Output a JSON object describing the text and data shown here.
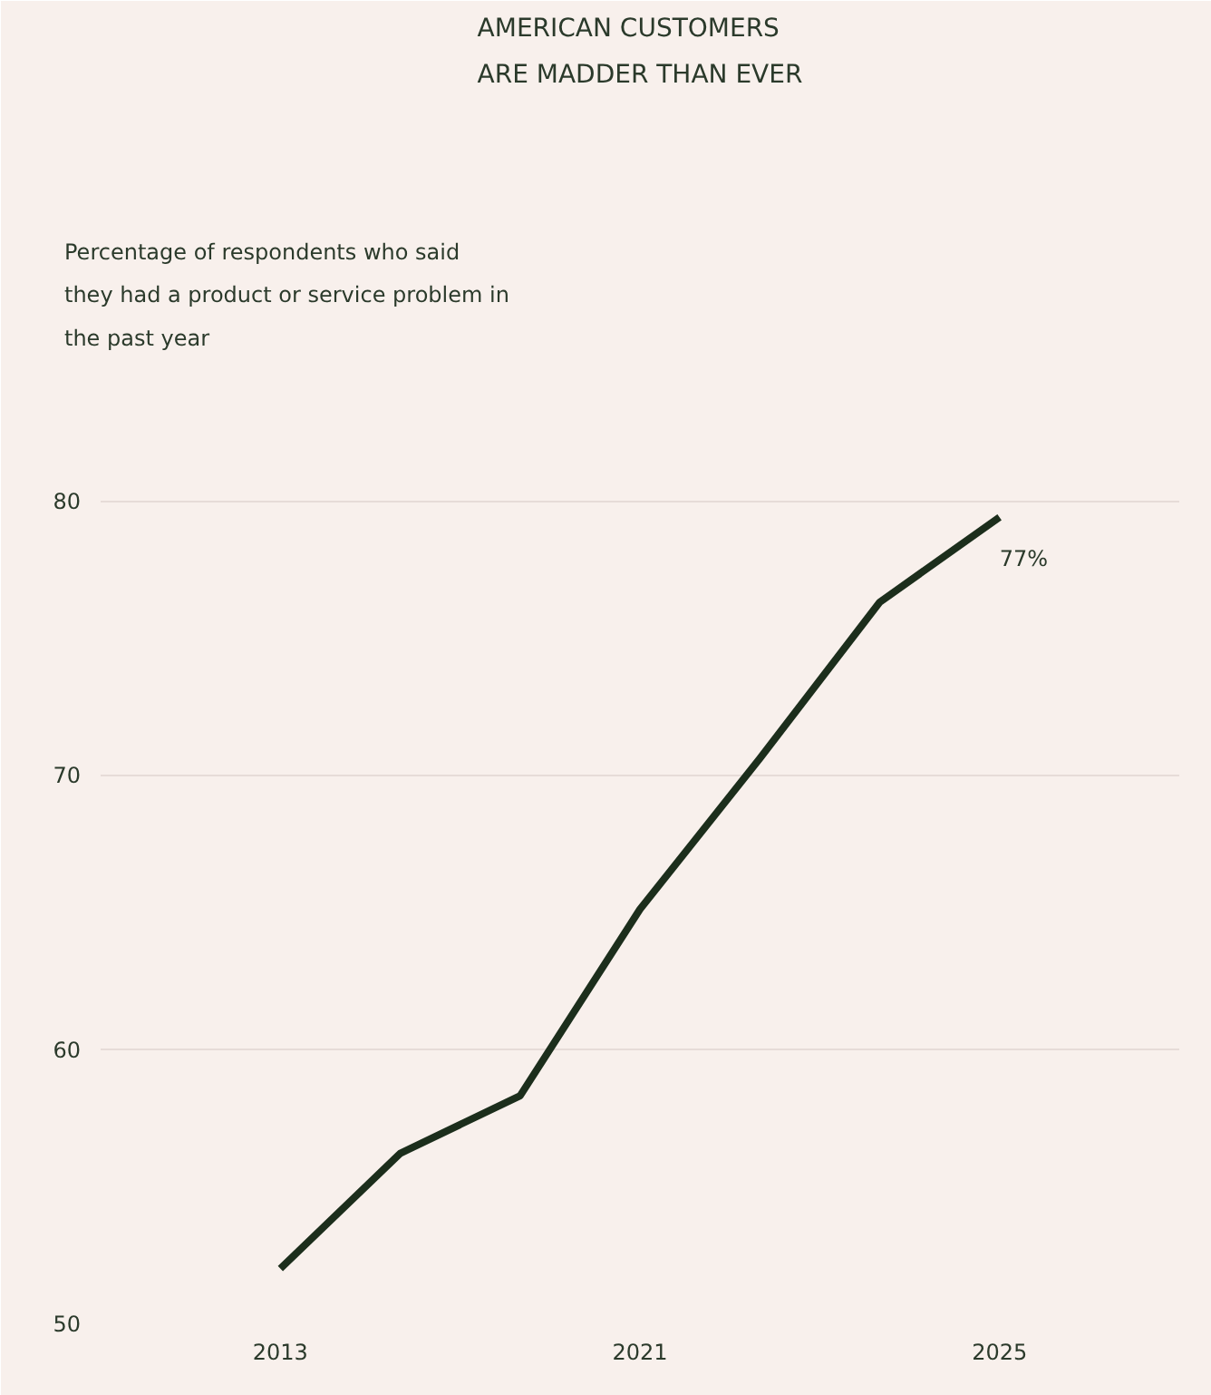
{
  "chart_data": {
    "type": "line",
    "title": "AMERICAN CUSTOMERS\nARE MADDER THAN EVER",
    "subtitle": "Percentage of respondents who said\nthey had a product or service problem in\nthe past year",
    "categories": [
      "2013",
      null,
      null,
      "2021",
      null,
      null,
      "2025"
    ],
    "series": [
      {
        "color": "#1c2e1c",
        "values": [
          52.0,
          56.2,
          58.3,
          65.1,
          70.6,
          76.3,
          79.4
        ]
      }
    ],
    "annotations": [
      "77%"
    ],
    "ylim": [
      50,
      80.5
    ],
    "yticks": [
      50,
      60,
      70,
      80
    ],
    "grid": "y",
    "marker": "none",
    "line_style": "solid"
  }
}
